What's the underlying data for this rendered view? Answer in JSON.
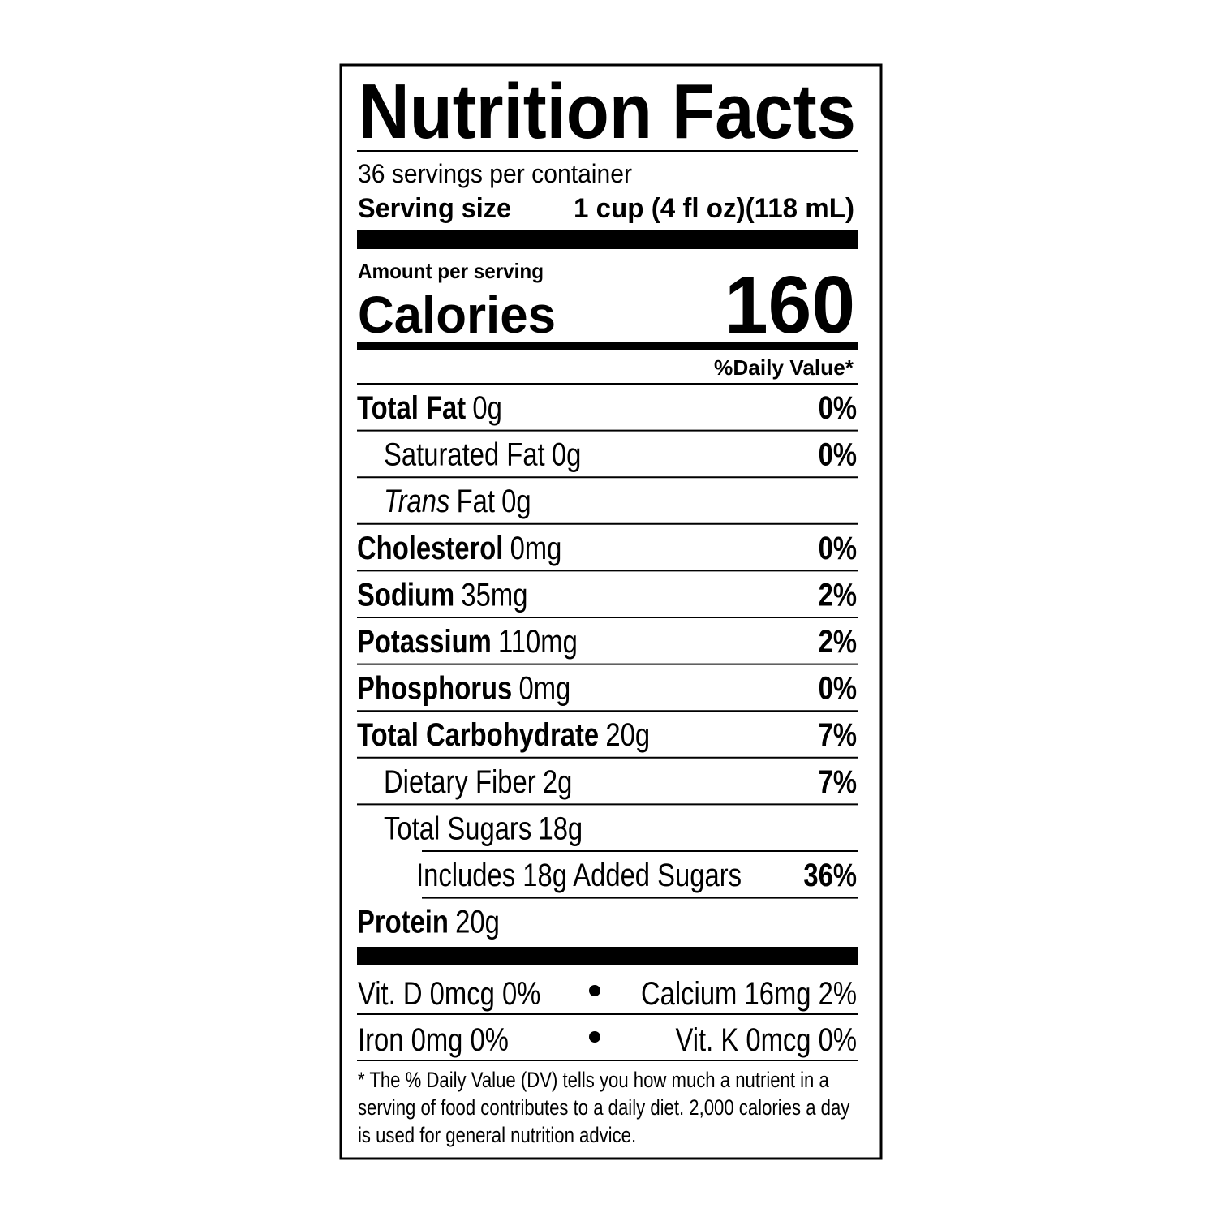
{
  "title": "Nutrition Facts",
  "servings": "36 servings per container",
  "serving_size": {
    "label": "Serving size",
    "value": "1 cup (4 fl oz)(118 mL)"
  },
  "amount_per_serving": "Amount per serving",
  "calories": {
    "label": "Calories",
    "value": "160"
  },
  "daily_value_header": "%Daily Value*",
  "nutrients": [
    {
      "name": "Total Fat",
      "amount": "0g",
      "dv": "0%",
      "sub": [
        {
          "name": "Saturated Fat",
          "amount": "0g",
          "dv": "0%"
        },
        {
          "name_italic": "Trans",
          "name": "Fat",
          "amount": "0g"
        }
      ]
    },
    {
      "name": "Cholesterol",
      "amount": "0mg",
      "dv": "0%"
    },
    {
      "name": "Sodium",
      "amount": "35mg",
      "dv": "2%"
    },
    {
      "name": "Potassium",
      "amount": "110mg",
      "dv": "2%"
    },
    {
      "name": "Phosphorus",
      "amount": "0mg",
      "dv": "0%"
    },
    {
      "name": "Total Carbohydrate",
      "amount": "20g",
      "dv": "7%",
      "sub": [
        {
          "name": "Dietary Fiber",
          "amount": "2g",
          "dv": "7%"
        },
        {
          "name": "Total Sugars",
          "amount": "18g",
          "sub": [
            {
              "name": "Includes 18g Added Sugars",
              "dv": "36%"
            }
          ]
        }
      ]
    },
    {
      "name": "Protein",
      "amount": "20g"
    }
  ],
  "vitamins": [
    [
      "Vit. D 0mcg 0%",
      "Calcium 16mg 2%"
    ],
    [
      "Iron 0mg 0%",
      "Vit. K 0mcg 0%"
    ]
  ],
  "footnote": [
    "* The % Daily Value (DV) tells you how much a nutrient in a",
    "serving of food contributes to a daily diet. 2,000 calories a day",
    "is used for general nutrition advice."
  ]
}
